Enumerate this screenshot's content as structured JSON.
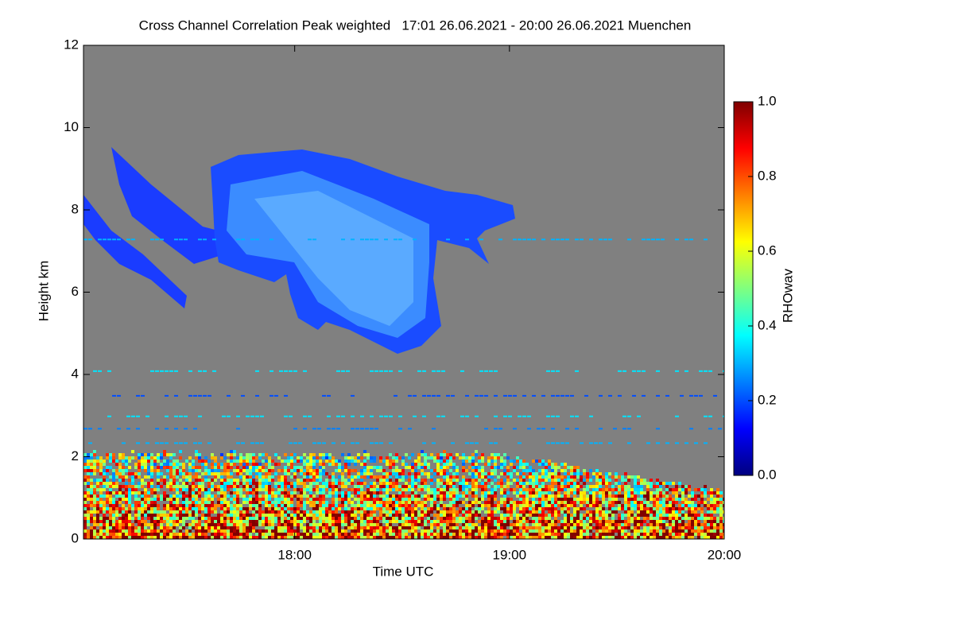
{
  "chart_data": {
    "type": "heatmap",
    "title": "Cross Channel Correlation Peak weighted   17:01 26.06.2021 - 20:00 26.06.2021 Muenchen",
    "x_label": "Time UTC",
    "y_label": "Height km",
    "xlim": [
      1021,
      1200
    ],
    "xticks": [
      {
        "value": 1080,
        "label": "18:00"
      },
      {
        "value": 1140,
        "label": "19:00"
      },
      {
        "value": 1200,
        "label": "20:00"
      }
    ],
    "ylim": [
      0,
      12
    ],
    "yticks": [
      0,
      2,
      4,
      6,
      8,
      10,
      12
    ],
    "colorscale": "jet",
    "background_color": "#808080",
    "colorbar": {
      "label": "RHOwav",
      "lim": [
        0,
        1
      ],
      "ticks": [
        {
          "value": 0,
          "label": "0.0"
        },
        {
          "value": 0.2,
          "label": "0.2"
        },
        {
          "value": 0.4,
          "label": "0.4"
        },
        {
          "value": 0.6,
          "label": "0.6"
        },
        {
          "value": 0.8,
          "label": "0.8"
        },
        {
          "value": 1,
          "label": "1.0"
        }
      ]
    }
  }
}
